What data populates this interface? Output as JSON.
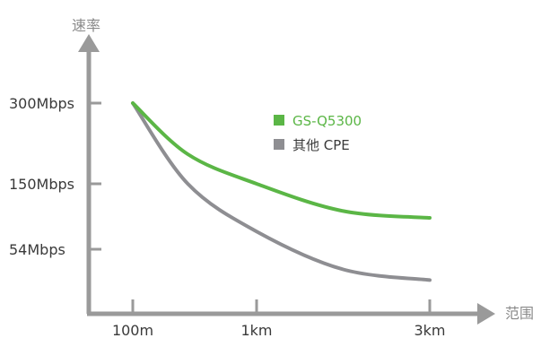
{
  "chart_data": {
    "type": "line",
    "xlabel": "范围",
    "ylabel": "速率",
    "x_ticks": [
      "100m",
      "1km",
      "3km"
    ],
    "y_ticks": [
      "300Mbps",
      "150Mbps",
      "54Mbps"
    ],
    "series": [
      {
        "name": "GS-Q5300",
        "color": "#5bb646",
        "points": [
          {
            "x": 0.1,
            "y": 300
          },
          {
            "x": 0.5,
            "y": 205
          },
          {
            "x": 1.0,
            "y": 150
          },
          {
            "x": 2.0,
            "y": 110
          },
          {
            "x": 3.0,
            "y": 100
          }
        ]
      },
      {
        "name": "其他 CPE",
        "color": "#8e8e92",
        "points": [
          {
            "x": 0.1,
            "y": 300
          },
          {
            "x": 0.5,
            "y": 150
          },
          {
            "x": 1.0,
            "y": 80
          },
          {
            "x": 2.0,
            "y": 35
          },
          {
            "x": 3.0,
            "y": 25
          }
        ]
      }
    ],
    "legend": "top-center",
    "grid": false
  }
}
